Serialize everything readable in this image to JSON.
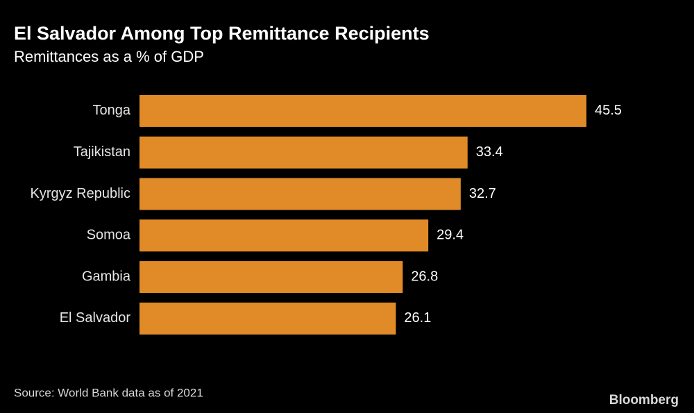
{
  "chart_data": {
    "type": "bar",
    "orientation": "horizontal",
    "title": "El Salvador Among Top Remittance Recipients",
    "subtitle": "Remittances as a % of GDP",
    "categories": [
      "Tonga",
      "Tajikistan",
      "Kyrgyz Republic",
      "Somoa",
      "Gambia",
      "El Salvador"
    ],
    "values": [
      45.5,
      33.4,
      32.7,
      29.4,
      26.8,
      26.1
    ],
    "color": "#e08b27",
    "source": "Source: World Bank data as of 2021",
    "credit": "Bloomberg"
  }
}
